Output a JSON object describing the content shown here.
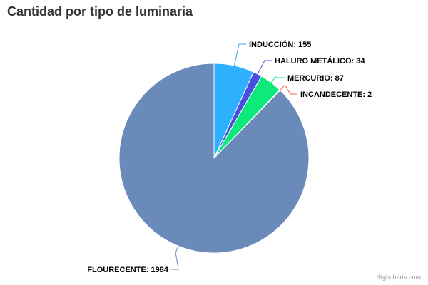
{
  "chart_data": {
    "type": "pie",
    "title": "Cantidad por tipo de luminaria",
    "categories": [
      "INDUCCIÓN",
      "HALURO METÁLICO",
      "MERCURIO",
      "INCANDECENTE",
      "FLOURECENTE"
    ],
    "values": [
      155,
      34,
      87,
      2,
      1984
    ],
    "colors": [
      "#2fb0fe",
      "#4a4de2",
      "#0ee97c",
      "#f6643e",
      "#6a8aba"
    ],
    "labels": [
      "INDUCCIÓN: 155",
      "HALURO METÁLICO: 34",
      "MERCURIO: 87",
      "INCANDECENTE: 2",
      "FLOURECENTE: 1984"
    ],
    "legend": "none",
    "start_angle_deg": 0
  },
  "credits": "Highcharts.com"
}
